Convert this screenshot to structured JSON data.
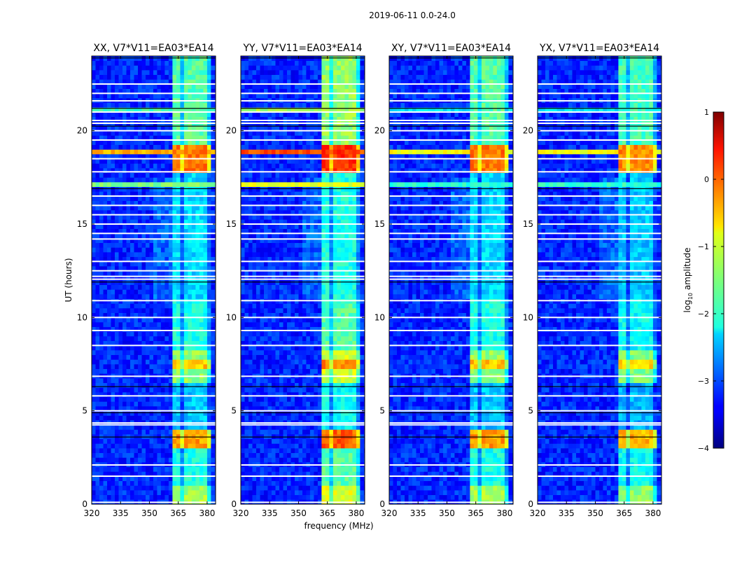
{
  "chart_data": {
    "type": "heatmap",
    "suptitle": "2019-06-11 0.0-24.0",
    "xlabel": "frequency (MHz)",
    "ylabel": "UT (hours)",
    "xlim": [
      320,
      384.4
    ],
    "ylim": [
      0,
      24
    ],
    "xticks": [
      "320",
      "335",
      "350",
      "365",
      "380"
    ],
    "xtick_values": [
      320,
      335,
      350,
      365,
      380
    ],
    "yticks": [
      "0",
      "5",
      "10",
      "15",
      "20"
    ],
    "ytick_values": [
      0,
      5,
      10,
      15,
      20
    ],
    "colorbar": {
      "label": "log₁₀ amplitude",
      "label_main": "log",
      "label_sub": "10",
      "label_rest": " amplitude",
      "range": [
        -4,
        1
      ],
      "ticks": [
        "1",
        "0",
        "−1",
        "−2",
        "−3",
        "−4"
      ],
      "tick_values": [
        1,
        0,
        -1,
        -2,
        -3,
        -4
      ],
      "colormap": "jet"
    },
    "panels": [
      {
        "title": "XX, V7*V11=EA03*EA14",
        "band_boost": 0.0,
        "line_boost": 0.0
      },
      {
        "title": "YY, V7*V11=EA03*EA14",
        "band_boost": 0.3,
        "line_boost": 0.5
      },
      {
        "title": "XY, V7*V11=EA03*EA14",
        "band_boost": 0.0,
        "line_boost": -0.4
      },
      {
        "title": "YX, V7*V11=EA03*EA14",
        "band_boost": -0.1,
        "line_boost": -0.4
      }
    ],
    "background_level": -3.2,
    "sub_bands_mhz": [
      [
        362,
        366.5
      ],
      [
        367.5,
        371.5
      ],
      [
        372.5,
        376
      ],
      [
        377,
        380.5
      ]
    ],
    "band_intervals": [
      {
        "ut": [
          0,
          1.0
        ],
        "level": -1.3
      },
      {
        "ut": [
          1.0,
          3.0
        ],
        "level": -2.0
      },
      {
        "ut": [
          3.0,
          4.1
        ],
        "level": -0.4
      },
      {
        "ut": [
          4.1,
          6.5
        ],
        "level": -2.4
      },
      {
        "ut": [
          6.5,
          8.3
        ],
        "level": -1.4
      },
      {
        "ut": [
          7.2,
          7.8
        ],
        "level": -0.6
      },
      {
        "ut": [
          8.3,
          11.0
        ],
        "level": -2.0
      },
      {
        "ut": [
          11.0,
          17.8
        ],
        "level": -2.3
      },
      {
        "ut": [
          17.8,
          19.2
        ],
        "level": -0.2
      },
      {
        "ut": [
          19.2,
          24
        ],
        "level": -1.7
      }
    ],
    "broadband_events": [
      {
        "ut": 18.8,
        "level": -0.5
      },
      {
        "ut": 17.1,
        "level": -1.5
      },
      {
        "ut": 21.1,
        "level": -1.8
      }
    ],
    "flagged_ut_hours": [
      0.1,
      1.5,
      2.1,
      4.25,
      4.35,
      5.0,
      5.8,
      6.85,
      8.5,
      9.3,
      10.0,
      10.9,
      12.05,
      12.2,
      12.5,
      13.0,
      14.2,
      14.5,
      15.0,
      15.5,
      16.0,
      16.5,
      17.8,
      18.5,
      19.5,
      20.0,
      20.4,
      20.55,
      21.0,
      21.6,
      22.0,
      22.5
    ],
    "dark_ut_hours": [
      3.6,
      4.9,
      6.3,
      11.9,
      16.9,
      20.25,
      21.2,
      23.9
    ]
  }
}
